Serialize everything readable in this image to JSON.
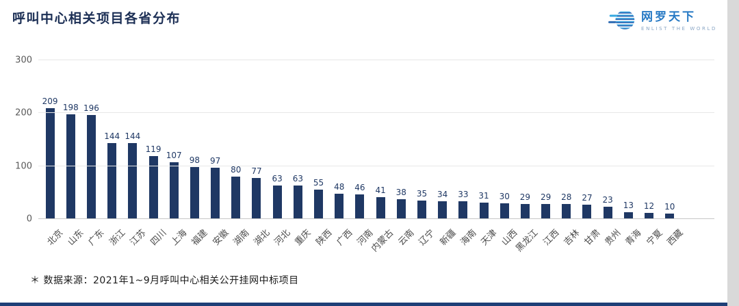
{
  "header": {
    "title": "呼叫中心相关项目各省分布",
    "logo": {
      "name": "网罗天下",
      "tagline": "ENLIST THE WORLD"
    }
  },
  "footer": {
    "note": "＊ 数据来源：2021年1~9月呼叫中心相关公开挂网中标项目"
  },
  "colors": {
    "bar": "#1F3864",
    "title": "#1C2F55",
    "logo_blue": "#2679C4",
    "bottom_strip": "#1E3F77",
    "grid": "#E7E7E7"
  },
  "chart_data": {
    "type": "bar",
    "title": "呼叫中心相关项目各省分布",
    "categories": [
      "北京",
      "山东",
      "广东",
      "浙江",
      "江苏",
      "四川",
      "上海",
      "福建",
      "安徽",
      "湖南",
      "湖北",
      "河北",
      "重庆",
      "陕西",
      "广西",
      "河南",
      "内蒙古",
      "云南",
      "辽宁",
      "新疆",
      "海南",
      "天津",
      "山西",
      "黑龙江",
      "江西",
      "吉林",
      "甘肃",
      "贵州",
      "青海",
      "宁夏",
      "西藏"
    ],
    "values": [
      209,
      198,
      196,
      144,
      144,
      119,
      107,
      98,
      97,
      80,
      77,
      63,
      63,
      55,
      48,
      46,
      41,
      38,
      35,
      34,
      33,
      31,
      30,
      29,
      29,
      28,
      27,
      23,
      13,
      12,
      10
    ],
    "xlabel": "",
    "ylabel": "",
    "ylim": [
      0,
      300
    ],
    "yticks": [
      0,
      100,
      200,
      300
    ],
    "grid": true,
    "legend_position": "none",
    "data_labels": true,
    "x_label_rotation": 45
  }
}
